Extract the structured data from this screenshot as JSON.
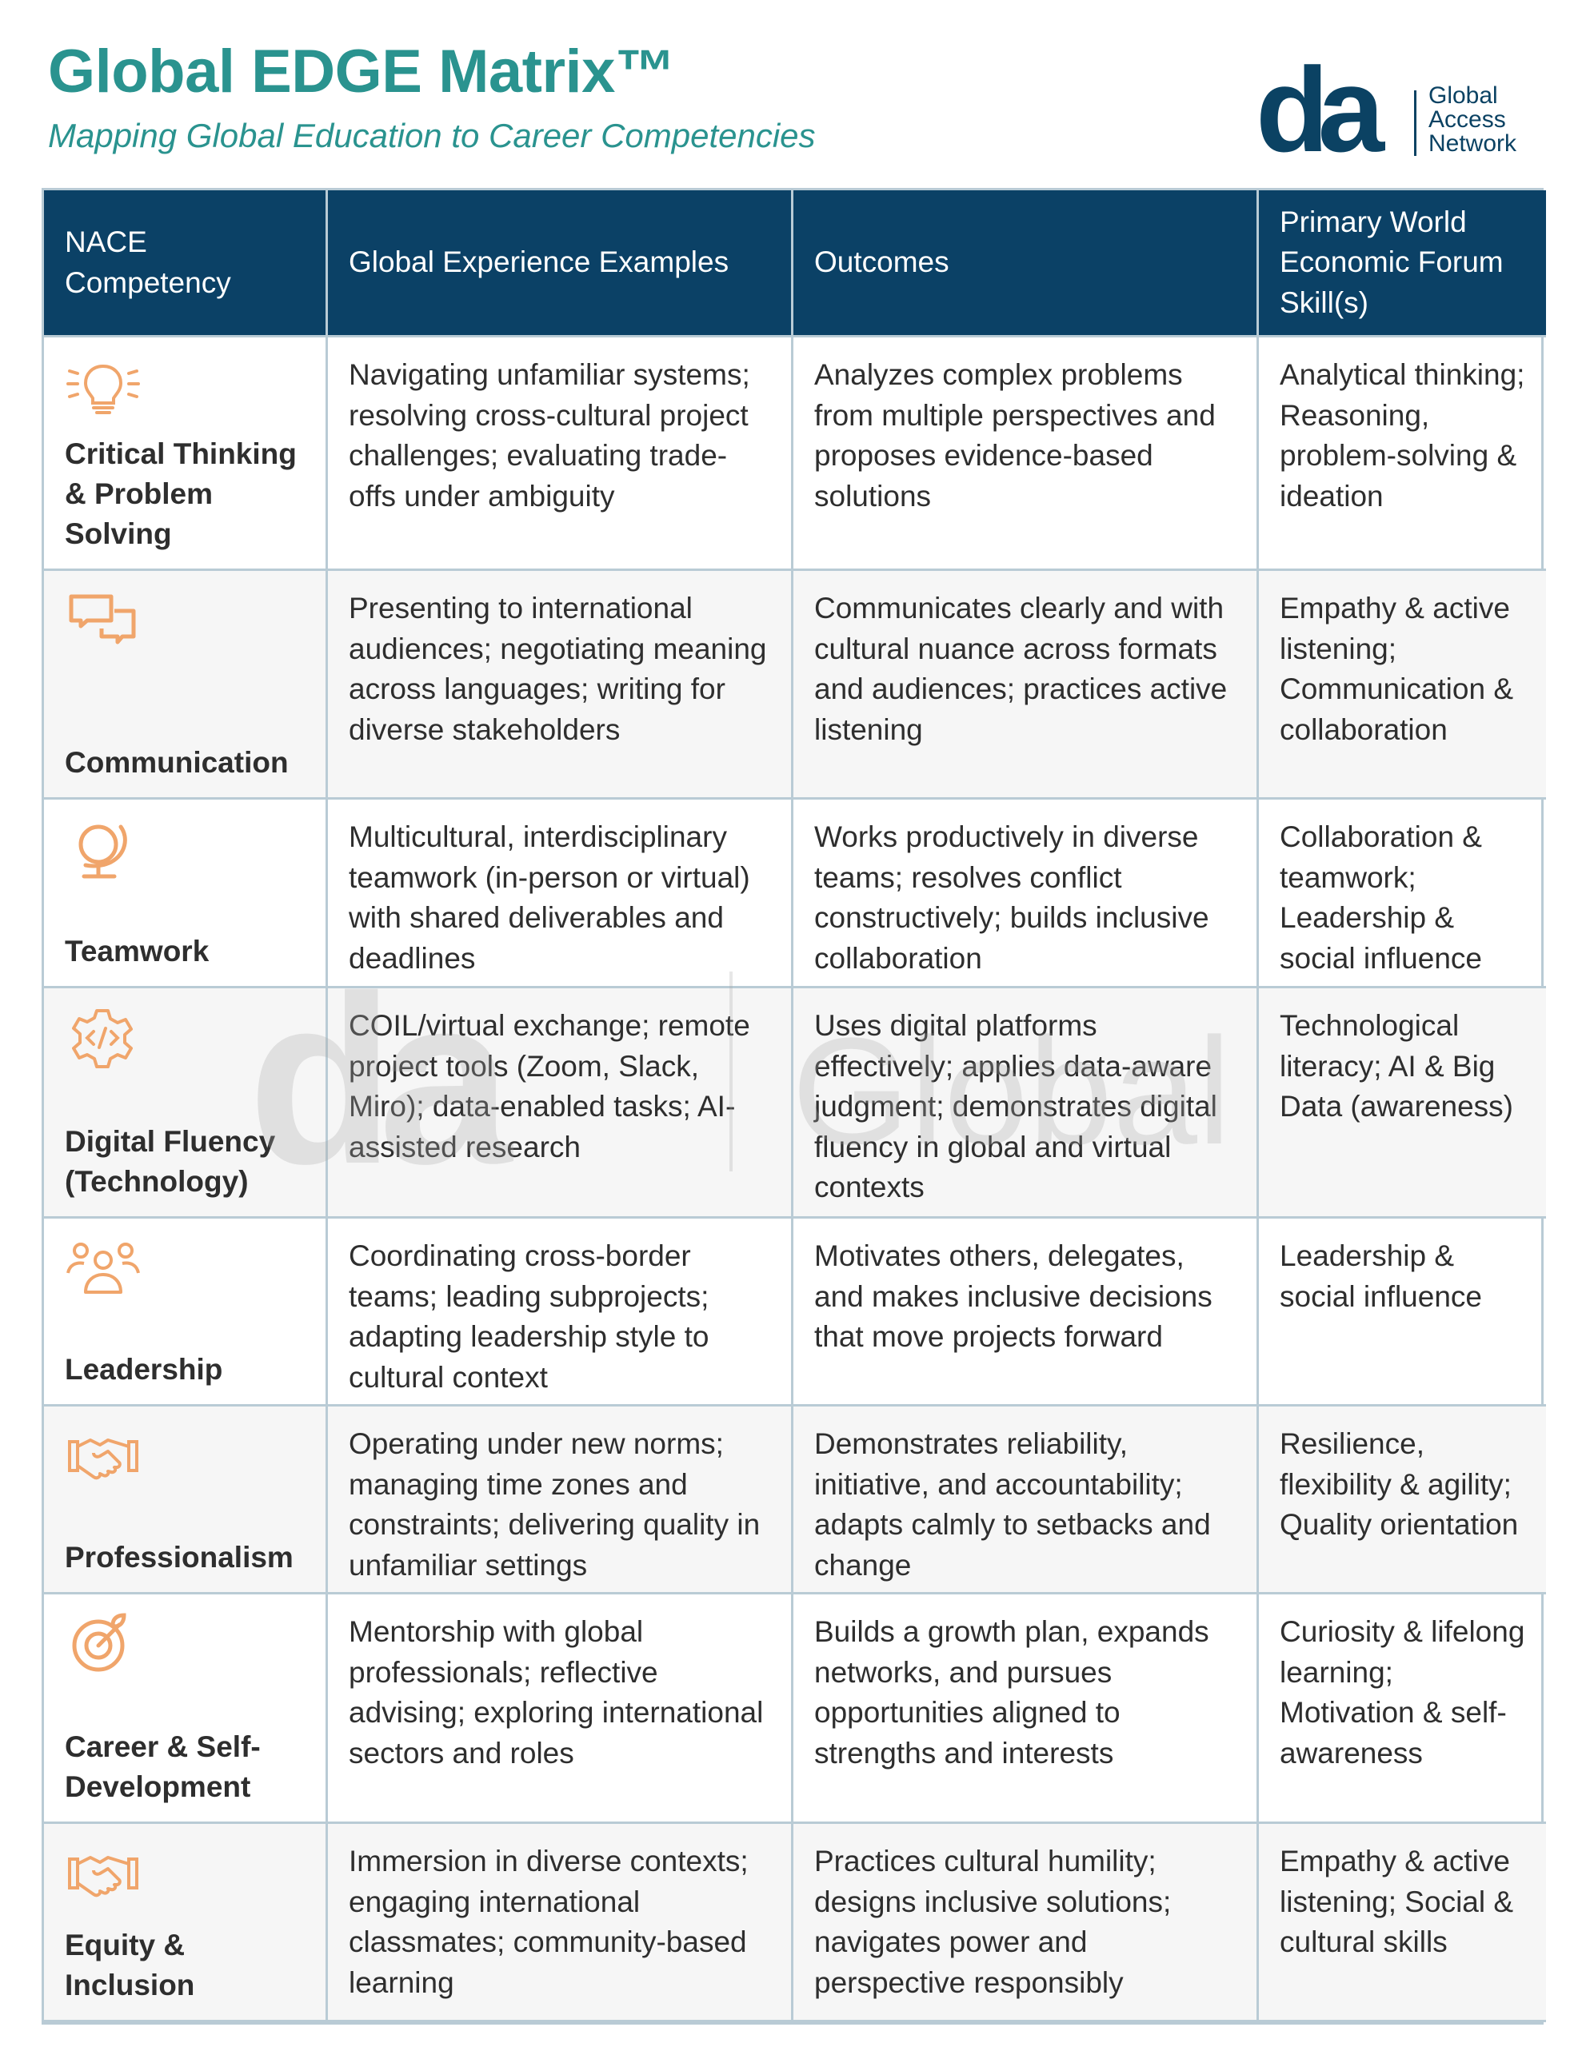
{
  "header": {
    "title": "Global EDGE Matrix™",
    "subtitle": "Mapping Global Education to Career Competencies"
  },
  "logo": {
    "mark": "da",
    "lines": [
      "Global",
      "Access",
      "Network"
    ]
  },
  "watermark": {
    "mark": "da",
    "text": "Global"
  },
  "colors": {
    "title": "#2a938f",
    "header_bg": "#0b4166",
    "icon": "#f0a56b",
    "border": "#b9cbd5"
  },
  "table": {
    "columns": [
      "NACE Competency",
      "Global Experience Examples",
      "Outcomes",
      "Primary World Economic Forum Skill(s)"
    ],
    "rows": [
      {
        "icon": "lightbulb-icon",
        "competency": "Critical Thinking & Problem Solving",
        "examples": "Navigating unfamiliar systems; resolving cross-cultural project challenges; evaluating trade-offs under ambiguity",
        "outcomes": "Analyzes complex problems from multiple perspectives and proposes evidence-based solutions",
        "wef": "Analytical thinking; Reasoning, problem-solving & ideation"
      },
      {
        "icon": "chat-bubbles-icon",
        "competency": "Communication",
        "examples": "Presenting to international audiences; negotiating meaning across languages; writing for diverse stakeholders",
        "outcomes": "Communicates clearly and with cultural nuance across formats and audiences; practices active listening",
        "wef": "Empathy & active listening; Communication & collaboration"
      },
      {
        "icon": "globe-icon",
        "competency": "Teamwork",
        "examples": "Multicultural, interdisciplinary teamwork (in-person or virtual) with shared deliverables and deadlines",
        "outcomes": "Works productively in diverse teams; resolves conflict constructively; builds inclusive collaboration",
        "wef": "Collaboration & teamwork; Leadership & social influence"
      },
      {
        "icon": "code-gear-icon",
        "competency": "Digital Fluency (Technology)",
        "examples": "COIL/virtual exchange; remote project tools (Zoom, Slack, Miro); data-enabled tasks; AI-assisted research",
        "outcomes": "Uses digital platforms effectively; applies data-aware judgment; demonstrates digital fluency in global and virtual contexts",
        "wef": "Technological literacy; AI & Big Data (awareness)"
      },
      {
        "icon": "people-group-icon",
        "competency": "Leadership",
        "examples": "Coordinating cross-border teams; leading subprojects; adapting leadership style to cultural context",
        "outcomes": "Motivates others, delegates, and makes inclusive decisions that move projects forward",
        "wef": "Leadership & social influence"
      },
      {
        "icon": "handshake-icon",
        "competency": "Professionalism",
        "examples": "Operating under new norms; managing time zones and constraints; delivering quality in unfamiliar settings",
        "outcomes": "Demonstrates reliability, initiative, and accountability; adapts calmly to setbacks and change",
        "wef": "Resilience, flexibility & agility; Quality orientation"
      },
      {
        "icon": "target-growth-icon",
        "competency": "Career & Self-Development",
        "examples": "Mentorship with global professionals; reflective advising; exploring international sectors and roles",
        "outcomes": "Builds a growth plan, expands networks, and pursues opportunities aligned to strengths and interests",
        "wef": "Curiosity & lifelong learning; Motivation & self-awareness"
      },
      {
        "icon": "handshake-icon",
        "competency": "Equity & Inclusion",
        "examples": "Immersion in diverse contexts; engaging international classmates; community-based learning",
        "outcomes": "Practices cultural humility; designs inclusive solutions; navigates power and perspective responsibly",
        "wef": "Empathy & active listening; Social & cultural skills"
      }
    ]
  }
}
